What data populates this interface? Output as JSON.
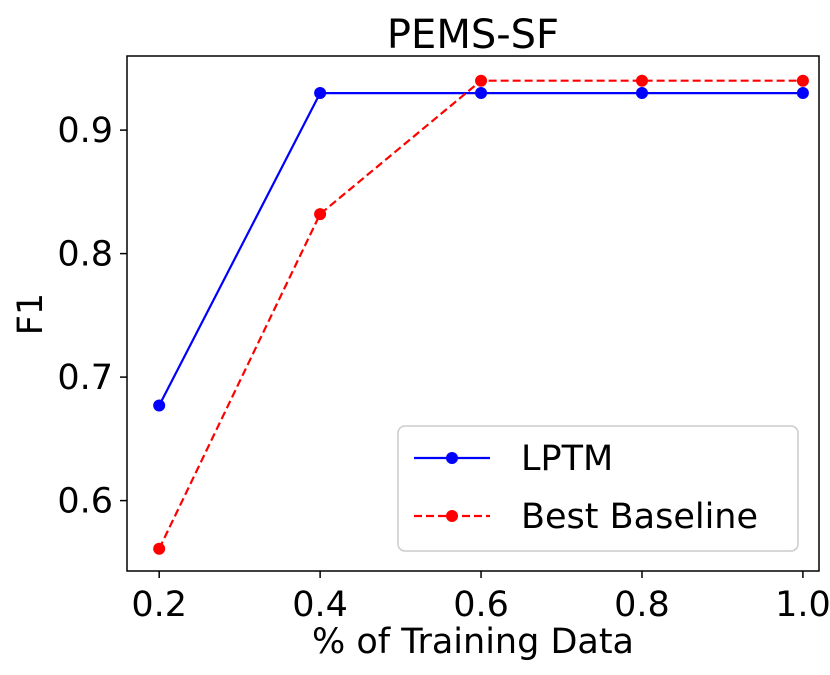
{
  "chart_data": {
    "type": "line",
    "title": "PEMS-SF",
    "xlabel": "% of Training Data",
    "ylabel": "F1",
    "x": [
      0.2,
      0.4,
      0.6,
      0.8,
      1.0
    ],
    "xticks": [
      "0.2",
      "0.4",
      "0.6",
      "0.8",
      "1.0"
    ],
    "yticks": [
      "0.6",
      "0.7",
      "0.8",
      "0.9"
    ],
    "xlim": [
      0.16,
      1.02
    ],
    "ylim": [
      0.543,
      0.96
    ],
    "grid": false,
    "legend_position": "lower-right",
    "series": [
      {
        "name": "LPTM",
        "values": [
          0.677,
          0.93,
          0.93,
          0.93,
          0.93
        ],
        "color": "#0000ff",
        "style": "solid"
      },
      {
        "name": "Best Baseline",
        "values": [
          0.561,
          0.832,
          0.94,
          0.94,
          0.94
        ],
        "color": "#ff0000",
        "style": "dashed"
      }
    ]
  }
}
